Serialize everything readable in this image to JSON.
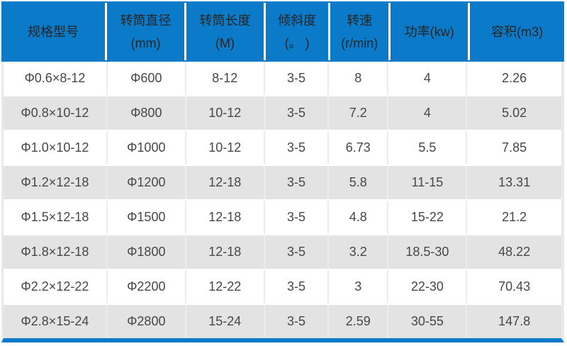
{
  "table": {
    "headers": [
      {
        "line1": "规格型号"
      },
      {
        "line1": "转筒直径",
        "line2": "(mm)"
      },
      {
        "line1": "转筒长度",
        "line2": "(M)"
      },
      {
        "line1": "倾斜度",
        "line2": "(。 )"
      },
      {
        "line1": "转速",
        "line2": "(r/min)"
      },
      {
        "line1": "功率(kw)"
      },
      {
        "line1": "容积(m3)"
      }
    ],
    "rows": [
      {
        "cells": [
          "Φ0.6×8-12",
          "Φ600",
          "8-12",
          "3-5",
          "8",
          "4",
          "2.26"
        ]
      },
      {
        "cells": [
          "Φ0.8×10-12",
          "Φ800",
          "10-12",
          "3-5",
          "7.2",
          "4",
          "5.02"
        ]
      },
      {
        "cells": [
          "Φ1.0×10-12",
          "Φ1000",
          "10-12",
          "3-5",
          "6.73",
          "5.5",
          "7.85"
        ]
      },
      {
        "cells": [
          "Φ1.2×12-18",
          "Φ1200",
          "12-18",
          "3-5",
          "5.8",
          "11-15",
          "13.31"
        ]
      },
      {
        "cells": [
          "Φ1.5×12-18",
          "Φ1500",
          "12-18",
          "3-5",
          "4.8",
          "15-22",
          "21.2"
        ]
      },
      {
        "cells": [
          "Φ1.8×12-18",
          "Φ1800",
          "12-18",
          "3-5",
          "3.2",
          "18.5-30",
          "48.22"
        ]
      },
      {
        "cells": [
          "Φ2.2×12-22",
          "Φ2200",
          "12-22",
          "3-5",
          "3",
          "22-30",
          "70.43"
        ]
      },
      {
        "cells": [
          "Φ2.8×15-24",
          "Φ2800",
          "15-24",
          "3-5",
          "2.59",
          "30-55",
          "147.8"
        ]
      }
    ]
  },
  "colors": {
    "header_bg": "#0b7ac9",
    "header_text": "#262626",
    "row_alt_bg": "#e3e3e3",
    "body_text": "#474747",
    "grid_line": "#ececec"
  }
}
